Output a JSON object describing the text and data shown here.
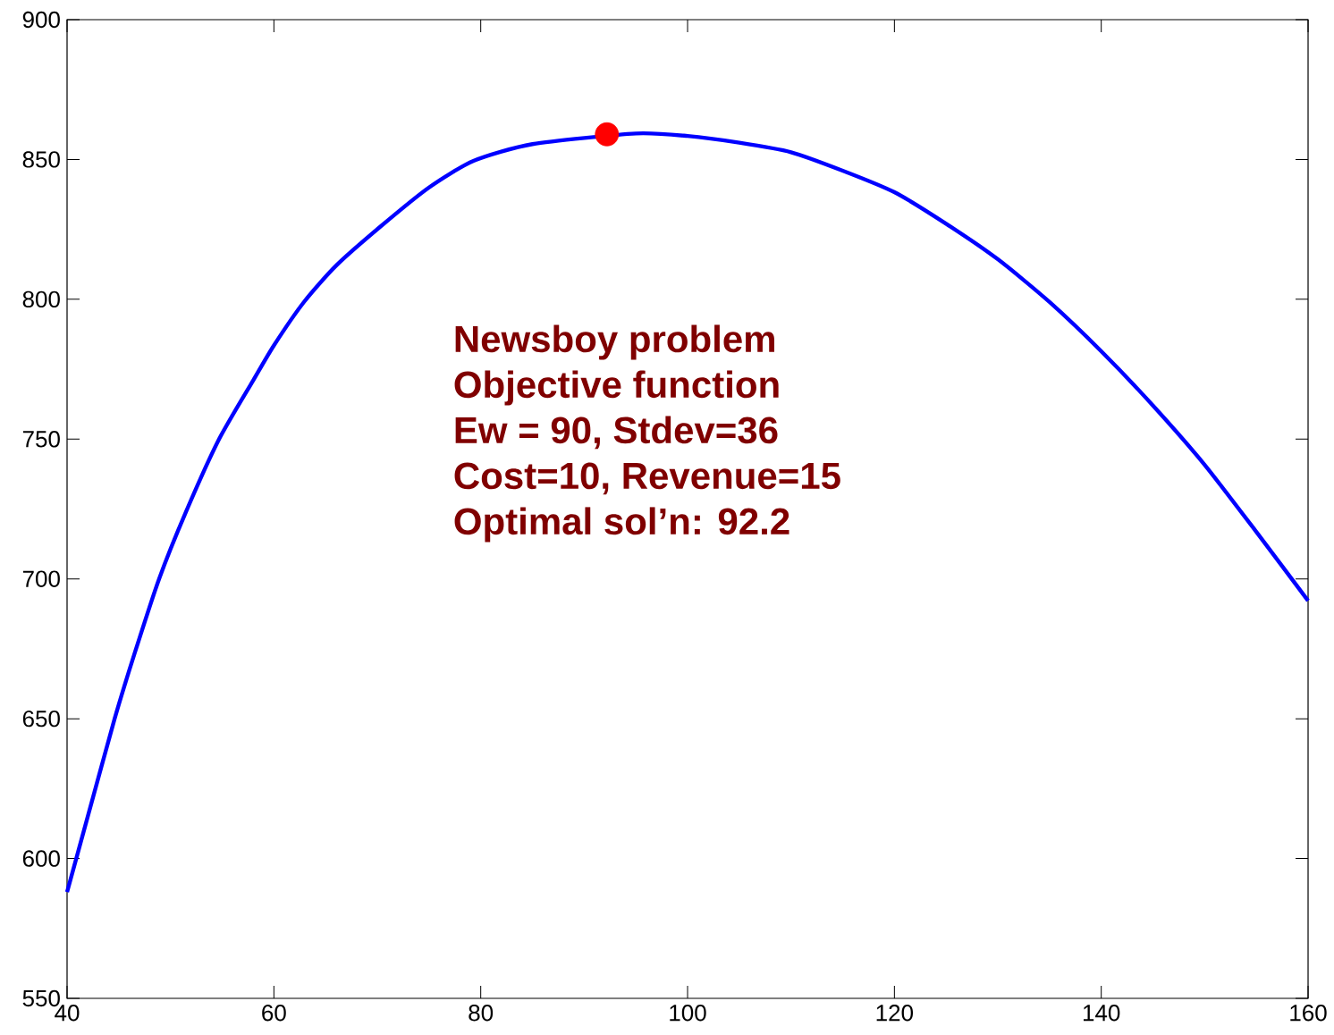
{
  "chart_data": {
    "type": "line",
    "series": [
      {
        "color": "#0000ff",
        "x": [
          40,
          42,
          44.6,
          46.5,
          48.9,
          51.5,
          54.7,
          58,
          60,
          62.9,
          66,
          70.3,
          75,
          79.3,
          85,
          95,
          100,
          105,
          110,
          115,
          120,
          125,
          130,
          135,
          140,
          145,
          150,
          155,
          160
        ],
        "values": [
          588,
          615,
          650,
          673,
          700,
          724,
          750,
          771,
          783.5,
          799,
          812,
          826,
          840,
          849.5,
          855.5,
          859.3,
          858.4,
          856,
          852.6,
          846,
          838.3,
          827,
          814.3,
          799,
          781.4,
          762,
          740.8,
          716.8,
          692.2
        ]
      },
      {
        "type": "scatter",
        "color": "#ff0000",
        "marker": "circle",
        "x": [
          92.2
        ],
        "values": [
          859
        ]
      }
    ],
    "annotations": [
      "Newsboy problem",
      "Objective function",
      "Ew = 90, Stdev=36",
      "Cost=10, Revenue=15",
      "Optimal sol’n: 92.2"
    ],
    "xlim": [
      40,
      160
    ],
    "ylim": [
      550,
      900
    ],
    "xticks": [
      40,
      60,
      80,
      100,
      120,
      140,
      160
    ],
    "yticks": [
      550,
      600,
      650,
      700,
      750,
      800,
      850,
      900
    ],
    "grid": false
  }
}
